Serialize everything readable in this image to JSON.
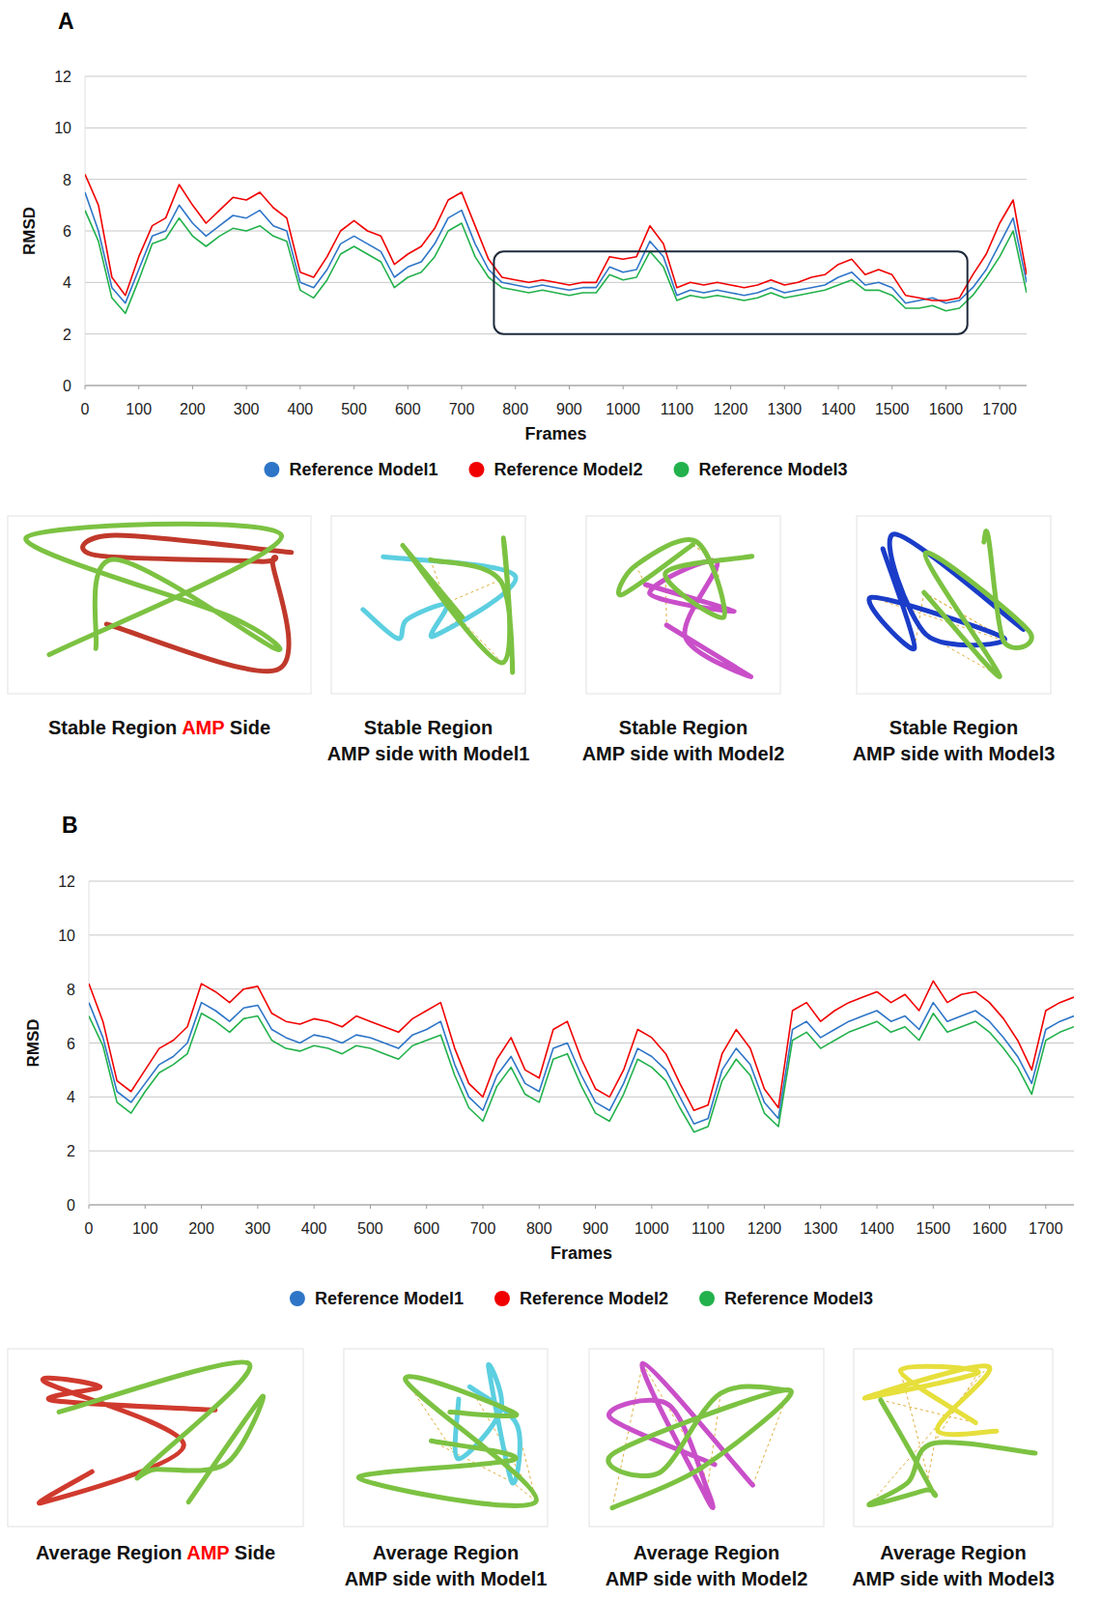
{
  "chart_data": [
    {
      "type": "line",
      "panel": "A",
      "x_label": "Frames",
      "y_label": "RMSD",
      "grid": true,
      "legend": "bottom",
      "x": [
        0,
        25,
        50,
        75,
        100,
        125,
        150,
        175,
        200,
        225,
        250,
        275,
        300,
        325,
        350,
        375,
        400,
        425,
        450,
        475,
        500,
        525,
        550,
        575,
        600,
        625,
        650,
        675,
        700,
        725,
        750,
        775,
        800,
        825,
        850,
        875,
        900,
        925,
        950,
        975,
        1000,
        1025,
        1050,
        1075,
        1100,
        1125,
        1150,
        1175,
        1200,
        1225,
        1250,
        1275,
        1300,
        1325,
        1350,
        1375,
        1400,
        1425,
        1450,
        1475,
        1500,
        1525,
        1550,
        1575,
        1600,
        1625,
        1650,
        1675,
        1700,
        1725,
        1750
      ],
      "xlim": [
        0,
        1750
      ],
      "xticks": [
        0,
        100,
        200,
        300,
        400,
        500,
        600,
        700,
        800,
        900,
        1000,
        1100,
        1200,
        1300,
        1400,
        1500,
        1600,
        1700
      ],
      "ylim": [
        0,
        12
      ],
      "yticks": [
        0,
        2,
        4,
        6,
        8,
        10,
        12
      ],
      "series": [
        {
          "name": "Reference Model1",
          "color": "#2e75c7",
          "values": [
            7.5,
            6.0,
            3.8,
            3.2,
            4.5,
            5.8,
            6.0,
            7.0,
            6.3,
            5.8,
            6.2,
            6.6,
            6.5,
            6.8,
            6.2,
            6.0,
            4.0,
            3.8,
            4.5,
            5.5,
            5.8,
            5.5,
            5.2,
            4.2,
            4.6,
            4.8,
            5.5,
            6.5,
            6.8,
            5.5,
            4.5,
            4.0,
            3.9,
            3.8,
            3.9,
            3.8,
            3.7,
            3.8,
            3.8,
            4.6,
            4.4,
            4.5,
            5.6,
            5.0,
            3.5,
            3.7,
            3.6,
            3.7,
            3.6,
            3.5,
            3.6,
            3.8,
            3.6,
            3.7,
            3.8,
            3.9,
            4.2,
            4.4,
            3.9,
            4.0,
            3.8,
            3.2,
            3.3,
            3.4,
            3.2,
            3.3,
            3.8,
            4.5,
            5.5,
            6.5,
            4.0
          ]
        },
        {
          "name": "Reference Model2",
          "color": "#f00000",
          "values": [
            8.2,
            7.0,
            4.2,
            3.5,
            5.0,
            6.2,
            6.5,
            7.8,
            7.0,
            6.3,
            6.8,
            7.3,
            7.2,
            7.5,
            6.9,
            6.5,
            4.4,
            4.2,
            5.0,
            6.0,
            6.4,
            6.0,
            5.8,
            4.7,
            5.1,
            5.4,
            6.1,
            7.2,
            7.5,
            6.2,
            4.9,
            4.2,
            4.1,
            4.0,
            4.1,
            4.0,
            3.9,
            4.0,
            4.0,
            5.0,
            4.9,
            5.0,
            6.2,
            5.5,
            3.8,
            4.0,
            3.9,
            4.0,
            3.9,
            3.8,
            3.9,
            4.1,
            3.9,
            4.0,
            4.2,
            4.3,
            4.7,
            4.9,
            4.3,
            4.5,
            4.3,
            3.5,
            3.4,
            3.3,
            3.3,
            3.4,
            4.3,
            5.1,
            6.3,
            7.2,
            4.3
          ]
        },
        {
          "name": "Reference Model3",
          "color": "#22b14c",
          "values": [
            6.8,
            5.6,
            3.4,
            2.8,
            4.1,
            5.5,
            5.7,
            6.5,
            5.8,
            5.4,
            5.8,
            6.1,
            6.0,
            6.2,
            5.8,
            5.6,
            3.7,
            3.4,
            4.1,
            5.1,
            5.4,
            5.1,
            4.8,
            3.8,
            4.2,
            4.4,
            5.0,
            6.0,
            6.3,
            5.0,
            4.2,
            3.8,
            3.7,
            3.6,
            3.7,
            3.6,
            3.5,
            3.6,
            3.6,
            4.3,
            4.1,
            4.2,
            5.2,
            4.6,
            3.3,
            3.5,
            3.4,
            3.5,
            3.4,
            3.3,
            3.4,
            3.6,
            3.4,
            3.5,
            3.6,
            3.7,
            3.9,
            4.1,
            3.7,
            3.7,
            3.5,
            3.0,
            3.0,
            3.1,
            2.9,
            3.0,
            3.5,
            4.2,
            5.0,
            6.0,
            3.6
          ]
        }
      ],
      "box": {
        "x0": 760,
        "x1": 1640,
        "y0": 2,
        "y1": 5.2
      },
      "images": [
        {
          "color": "#c0392b",
          "caption": [
            [
              {
                "text": "Stable Region "
              },
              {
                "text": "AMP",
                "color": "#ff0000"
              },
              {
                "text": " Side"
              }
            ]
          ]
        },
        {
          "color": "#5ccfe0",
          "caption": [
            [
              {
                "text": "Stable Region"
              }
            ],
            [
              {
                "text": "AMP side with Model1"
              }
            ]
          ]
        },
        {
          "color": "#c94fc9",
          "caption": [
            [
              {
                "text": "Stable Region"
              }
            ],
            [
              {
                "text": "AMP side with Model2"
              }
            ]
          ]
        },
        {
          "color": "#1a3cc8",
          "caption": [
            [
              {
                "text": "Stable Region"
              }
            ],
            [
              {
                "text": "AMP side with Model3"
              }
            ]
          ]
        }
      ]
    },
    {
      "type": "line",
      "panel": "B",
      "x_label": "Frames",
      "y_label": "RMSD",
      "grid": true,
      "legend": "bottom",
      "x": [
        0,
        25,
        50,
        75,
        100,
        125,
        150,
        175,
        200,
        225,
        250,
        275,
        300,
        325,
        350,
        375,
        400,
        425,
        450,
        475,
        500,
        525,
        550,
        575,
        600,
        625,
        650,
        675,
        700,
        725,
        750,
        775,
        800,
        825,
        850,
        875,
        900,
        925,
        950,
        975,
        1000,
        1025,
        1050,
        1075,
        1100,
        1125,
        1150,
        1175,
        1200,
        1225,
        1250,
        1275,
        1300,
        1325,
        1350,
        1375,
        1400,
        1425,
        1450,
        1475,
        1500,
        1525,
        1550,
        1575,
        1600,
        1625,
        1650,
        1675,
        1700,
        1725,
        1750
      ],
      "xlim": [
        0,
        1750
      ],
      "xticks": [
        0,
        100,
        200,
        300,
        400,
        500,
        600,
        700,
        800,
        900,
        1000,
        1100,
        1200,
        1300,
        1400,
        1500,
        1600,
        1700
      ],
      "ylim": [
        0,
        12
      ],
      "yticks": [
        0,
        2,
        4,
        6,
        8,
        10,
        12
      ],
      "series": [
        {
          "name": "Reference Model1",
          "color": "#2e75c7",
          "values": [
            7.5,
            6.2,
            4.2,
            3.8,
            4.5,
            5.2,
            5.5,
            6.0,
            7.5,
            7.2,
            6.8,
            7.3,
            7.4,
            6.5,
            6.2,
            6.0,
            6.3,
            6.2,
            6.0,
            6.3,
            6.2,
            6.0,
            5.8,
            6.3,
            6.5,
            6.8,
            5.2,
            4.0,
            3.5,
            4.8,
            5.5,
            4.5,
            4.2,
            5.8,
            6.0,
            4.8,
            3.8,
            3.5,
            4.5,
            5.8,
            5.5,
            5.0,
            4.0,
            3.0,
            3.2,
            5.0,
            5.8,
            5.2,
            3.8,
            3.2,
            6.5,
            6.8,
            6.2,
            6.5,
            6.8,
            7.0,
            7.2,
            6.8,
            7.0,
            6.5,
            7.5,
            6.8,
            7.0,
            7.2,
            6.8,
            6.2,
            5.5,
            4.5,
            6.5,
            6.8,
            7.0
          ]
        },
        {
          "name": "Reference Model2",
          "color": "#f00000",
          "values": [
            8.2,
            6.8,
            4.6,
            4.2,
            5.0,
            5.8,
            6.1,
            6.6,
            8.2,
            7.9,
            7.5,
            8.0,
            8.1,
            7.1,
            6.8,
            6.7,
            6.9,
            6.8,
            6.6,
            7.0,
            6.8,
            6.6,
            6.4,
            6.9,
            7.2,
            7.5,
            5.8,
            4.5,
            4.0,
            5.4,
            6.2,
            5.0,
            4.7,
            6.5,
            6.8,
            5.4,
            4.3,
            4.0,
            5.0,
            6.5,
            6.2,
            5.6,
            4.5,
            3.5,
            3.7,
            5.6,
            6.5,
            5.8,
            4.3,
            3.6,
            7.2,
            7.5,
            6.8,
            7.2,
            7.5,
            7.7,
            7.9,
            7.5,
            7.8,
            7.2,
            8.3,
            7.5,
            7.8,
            7.9,
            7.5,
            6.9,
            6.1,
            5.0,
            7.2,
            7.5,
            7.7
          ]
        },
        {
          "name": "Reference Model3",
          "color": "#22b14c",
          "values": [
            7.0,
            5.9,
            3.8,
            3.4,
            4.2,
            4.9,
            5.2,
            5.6,
            7.1,
            6.8,
            6.4,
            6.9,
            7.0,
            6.1,
            5.8,
            5.7,
            5.9,
            5.8,
            5.6,
            5.9,
            5.8,
            5.6,
            5.4,
            5.9,
            6.1,
            6.3,
            4.8,
            3.6,
            3.1,
            4.4,
            5.1,
            4.1,
            3.8,
            5.4,
            5.6,
            4.4,
            3.4,
            3.1,
            4.1,
            5.4,
            5.1,
            4.6,
            3.6,
            2.7,
            2.9,
            4.6,
            5.4,
            4.8,
            3.4,
            2.9,
            6.1,
            6.4,
            5.8,
            6.1,
            6.4,
            6.6,
            6.8,
            6.4,
            6.6,
            6.1,
            7.1,
            6.4,
            6.6,
            6.8,
            6.4,
            5.8,
            5.1,
            4.1,
            6.1,
            6.4,
            6.6
          ]
        }
      ],
      "images": [
        {
          "color": "#d03a2e",
          "caption": [
            [
              {
                "text": "Average Region "
              },
              {
                "text": "AMP",
                "color": "#ff0000"
              },
              {
                "text": " Side"
              }
            ]
          ]
        },
        {
          "color": "#5ccfe0",
          "caption": [
            [
              {
                "text": "Average Region"
              }
            ],
            [
              {
                "text": "AMP side with Model1"
              }
            ]
          ]
        },
        {
          "color": "#c94fc9",
          "caption": [
            [
              {
                "text": "Average Region"
              }
            ],
            [
              {
                "text": "AMP side with Model2"
              }
            ]
          ]
        },
        {
          "color": "#e6df3c",
          "caption": [
            [
              {
                "text": "Average Region"
              }
            ],
            [
              {
                "text": "AMP side with Model3"
              }
            ]
          ]
        }
      ]
    }
  ]
}
